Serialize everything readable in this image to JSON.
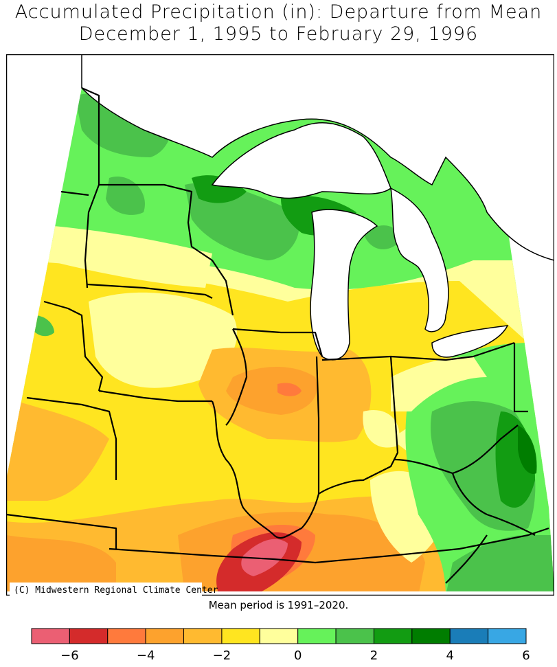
{
  "title": {
    "line1": "Accumulated Precipitation (in): Departure from Mean",
    "line2": "December 1, 1995 to February 29, 1996"
  },
  "credit": "(C) Midwestern Regional Climate Center",
  "note": "Mean period is 1991–2020.",
  "colors": {
    "dg": "#007D00",
    "g2": "#129C12",
    "g1": "#4BC24B",
    "lg": "#66F25A",
    "ly": "#FFFF9C",
    "y1": "#FFE520",
    "y2": "#FFBA30",
    "o1": "#FDA22D",
    "o2": "#FF7A3C",
    "r1": "#D42B2B",
    "pk": "#EB5F73",
    "b1": "#1A7DB8",
    "b2": "#38A7E4",
    "lake": "#FFFFFF",
    "line": "#000000"
  },
  "legend": {
    "bins": [
      {
        "color": "pk",
        "range": "< -6"
      },
      {
        "color": "r1",
        "range": "-6 to -5"
      },
      {
        "color": "o2",
        "range": "-5 to -4"
      },
      {
        "color": "o1",
        "range": "-4 to -3"
      },
      {
        "color": "y2",
        "range": "-3 to -2"
      },
      {
        "color": "y1",
        "range": "-2 to -1"
      },
      {
        "color": "ly",
        "range": "-1 to 0"
      },
      {
        "color": "lg",
        "range": "0 to 1"
      },
      {
        "color": "g1",
        "range": "1 to 2"
      },
      {
        "color": "g2",
        "range": "2 to 3"
      },
      {
        "color": "dg",
        "range": "3 to 4"
      },
      {
        "color": "b1",
        "range": "4 to 5"
      },
      {
        "color": "b2",
        "range": "5 to 6"
      }
    ],
    "tick_labels": [
      "−6",
      "−4",
      "−2",
      "0",
      "2",
      "4",
      "6"
    ]
  }
}
